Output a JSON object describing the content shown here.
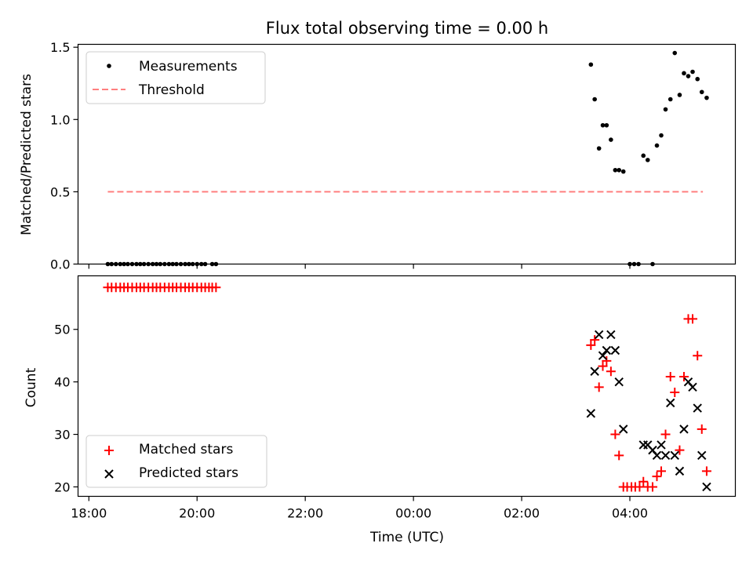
{
  "chart_data": {
    "type": "scatter",
    "title": "Flux total observing time = 0.00 h",
    "xlabel": "Time (UTC)",
    "x_unit": "hours since 00:00 UTC",
    "xlim": [
      -6.2,
      5.95
    ],
    "x_ticks": [
      {
        "value": -6,
        "label": "18:00"
      },
      {
        "value": -4,
        "label": "20:00"
      },
      {
        "value": -2,
        "label": "22:00"
      },
      {
        "value": 0,
        "label": "00:00"
      },
      {
        "value": 2,
        "label": "02:00"
      },
      {
        "value": 4,
        "label": "04:00"
      }
    ],
    "panels": [
      {
        "name": "ratio",
        "ylabel": "Matched/Predicted stars",
        "ylim": [
          0,
          1.52
        ],
        "y_ticks": [
          {
            "value": 0,
            "label": "0.0"
          },
          {
            "value": 0.5,
            "label": "0.5"
          },
          {
            "value": 1.0,
            "label": "1.0"
          },
          {
            "value": 1.5,
            "label": "1.5"
          }
        ],
        "legend": {
          "placement": "upper-left",
          "entries": [
            "Measurements",
            "Threshold"
          ]
        },
        "series": [
          {
            "name": "Measurements",
            "marker": "dot",
            "color": "#000000",
            "points": [
              [
                -5.65,
                0
              ],
              [
                -5.58,
                0
              ],
              [
                -5.5,
                0
              ],
              [
                -5.42,
                0
              ],
              [
                -5.35,
                0
              ],
              [
                -5.28,
                0
              ],
              [
                -5.2,
                0
              ],
              [
                -5.12,
                0
              ],
              [
                -5.05,
                0
              ],
              [
                -4.98,
                0
              ],
              [
                -4.9,
                0
              ],
              [
                -4.82,
                0
              ],
              [
                -4.75,
                0
              ],
              [
                -4.68,
                0
              ],
              [
                -4.6,
                0
              ],
              [
                -4.52,
                0
              ],
              [
                -4.45,
                0
              ],
              [
                -4.38,
                0
              ],
              [
                -4.3,
                0
              ],
              [
                -4.22,
                0
              ],
              [
                -4.15,
                0
              ],
              [
                -4.08,
                0
              ],
              [
                -4.0,
                0
              ],
              [
                -3.92,
                0
              ],
              [
                -3.85,
                0
              ],
              [
                -3.72,
                0
              ],
              [
                -3.65,
                0
              ],
              [
                3.28,
                1.38
              ],
              [
                3.35,
                1.14
              ],
              [
                3.43,
                0.8
              ],
              [
                3.5,
                0.96
              ],
              [
                3.57,
                0.96
              ],
              [
                3.65,
                0.86
              ],
              [
                3.73,
                0.65
              ],
              [
                3.8,
                0.65
              ],
              [
                3.88,
                0.64
              ],
              [
                4.0,
                0
              ],
              [
                4.08,
                0
              ],
              [
                4.16,
                0
              ],
              [
                4.25,
                0.75
              ],
              [
                4.33,
                0.72
              ],
              [
                4.42,
                0
              ],
              [
                4.5,
                0.82
              ],
              [
                4.58,
                0.89
              ],
              [
                4.66,
                1.07
              ],
              [
                4.75,
                1.14
              ],
              [
                4.83,
                1.46
              ],
              [
                4.92,
                1.17
              ],
              [
                5.0,
                1.32
              ],
              [
                5.08,
                1.3
              ],
              [
                5.16,
                1.33
              ],
              [
                5.25,
                1.28
              ],
              [
                5.33,
                1.19
              ],
              [
                5.42,
                1.15
              ]
            ]
          },
          {
            "name": "Threshold",
            "style": "dashed",
            "color": "#ff7f7f",
            "x": [
              -5.65,
              5.35
            ],
            "y": [
              0.5,
              0.5
            ]
          }
        ]
      },
      {
        "name": "counts",
        "ylabel": "Count",
        "ylim": [
          18.2,
          60.2
        ],
        "y_ticks": [
          {
            "value": 20,
            "label": "20"
          },
          {
            "value": 30,
            "label": "30"
          },
          {
            "value": 40,
            "label": "40"
          },
          {
            "value": 50,
            "label": "50"
          }
        ],
        "legend": {
          "placement": "lower-left",
          "entries": [
            "Matched stars",
            "Predicted stars"
          ]
        },
        "series": [
          {
            "name": "Matched stars",
            "marker": "plus",
            "color": "#ff0000",
            "points": [
              [
                -5.65,
                58
              ],
              [
                -5.58,
                58
              ],
              [
                -5.5,
                58
              ],
              [
                -5.42,
                58
              ],
              [
                -5.35,
                58
              ],
              [
                -5.28,
                58
              ],
              [
                -5.2,
                58
              ],
              [
                -5.12,
                58
              ],
              [
                -5.05,
                58
              ],
              [
                -4.98,
                58
              ],
              [
                -4.9,
                58
              ],
              [
                -4.82,
                58
              ],
              [
                -4.75,
                58
              ],
              [
                -4.68,
                58
              ],
              [
                -4.6,
                58
              ],
              [
                -4.52,
                58
              ],
              [
                -4.45,
                58
              ],
              [
                -4.38,
                58
              ],
              [
                -4.3,
                58
              ],
              [
                -4.22,
                58
              ],
              [
                -4.15,
                58
              ],
              [
                -4.08,
                58
              ],
              [
                -4.0,
                58
              ],
              [
                -3.92,
                58
              ],
              [
                -3.85,
                58
              ],
              [
                -3.78,
                58
              ],
              [
                -3.72,
                58
              ],
              [
                -3.65,
                58
              ],
              [
                3.28,
                47
              ],
              [
                3.35,
                48
              ],
              [
                3.43,
                39
              ],
              [
                3.5,
                43
              ],
              [
                3.57,
                44
              ],
              [
                3.65,
                42
              ],
              [
                3.73,
                30
              ],
              [
                3.8,
                26
              ],
              [
                3.88,
                20
              ],
              [
                3.95,
                20
              ],
              [
                4.03,
                20
              ],
              [
                4.1,
                20
              ],
              [
                4.18,
                20
              ],
              [
                4.25,
                21
              ],
              [
                4.33,
                20
              ],
              [
                4.42,
                20
              ],
              [
                4.5,
                22
              ],
              [
                4.58,
                23
              ],
              [
                4.66,
                30
              ],
              [
                4.75,
                41
              ],
              [
                4.83,
                38
              ],
              [
                4.92,
                27
              ],
              [
                5.0,
                41
              ],
              [
                5.08,
                52
              ],
              [
                5.16,
                52
              ],
              [
                5.25,
                45
              ],
              [
                5.33,
                31
              ],
              [
                5.42,
                23
              ]
            ]
          },
          {
            "name": "Predicted stars",
            "marker": "x",
            "color": "#000000",
            "points": [
              [
                3.28,
                34
              ],
              [
                3.35,
                42
              ],
              [
                3.43,
                49
              ],
              [
                3.5,
                45
              ],
              [
                3.57,
                46
              ],
              [
                3.65,
                49
              ],
              [
                3.73,
                46
              ],
              [
                3.8,
                40
              ],
              [
                3.88,
                31
              ],
              [
                4.25,
                28
              ],
              [
                4.33,
                28
              ],
              [
                4.42,
                27
              ],
              [
                4.5,
                26
              ],
              [
                4.58,
                28
              ],
              [
                4.66,
                26
              ],
              [
                4.75,
                36
              ],
              [
                4.83,
                26
              ],
              [
                4.92,
                23
              ],
              [
                5.0,
                31
              ],
              [
                5.08,
                40
              ],
              [
                5.16,
                39
              ],
              [
                5.25,
                35
              ],
              [
                5.33,
                26
              ],
              [
                5.42,
                20
              ]
            ]
          }
        ]
      }
    ]
  }
}
